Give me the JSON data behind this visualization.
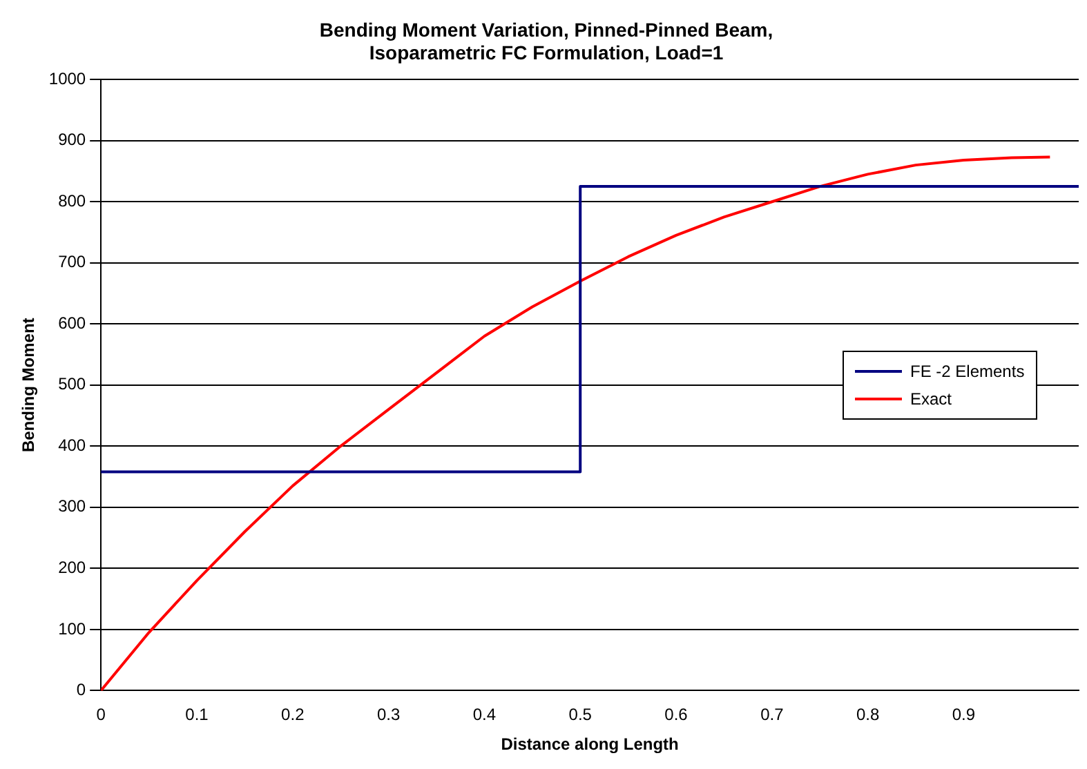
{
  "chart_data": {
    "type": "line",
    "title": "Bending Moment Variation, Pinned-Pinned Beam,\nIsoparametric FC Formulation, Load=1",
    "xlabel": "Distance along Length",
    "ylabel": "Bending Moment",
    "xlim": [
      0,
      1.02
    ],
    "xticks": [
      0,
      0.1,
      0.2,
      0.3,
      0.4,
      0.5,
      0.6,
      0.7,
      0.8,
      0.9
    ],
    "ylim": [
      0,
      1000
    ],
    "yticks": [
      0,
      100,
      200,
      300,
      400,
      500,
      600,
      700,
      800,
      900,
      1000
    ],
    "grid": "y",
    "legend": "right",
    "marker": "none",
    "line_style": "solid",
    "series": [
      {
        "name": "FE -2 Elements",
        "color": "#000080",
        "type": "step",
        "x": [
          0,
          0.5,
          1.02
        ],
        "values": [
          358,
          825,
          825
        ]
      },
      {
        "name": "Exact",
        "color": "#ff0000",
        "type": "line",
        "x": [
          0,
          0.05,
          0.1,
          0.15,
          0.2,
          0.25,
          0.3,
          0.35,
          0.4,
          0.45,
          0.5,
          0.55,
          0.6,
          0.65,
          0.7,
          0.75,
          0.8,
          0.85,
          0.9,
          0.95,
          0.99
        ],
        "values": [
          0,
          95,
          180,
          260,
          335,
          400,
          460,
          520,
          580,
          628,
          670,
          710,
          745,
          775,
          800,
          825,
          845,
          860,
          868,
          872,
          873
        ]
      }
    ]
  }
}
